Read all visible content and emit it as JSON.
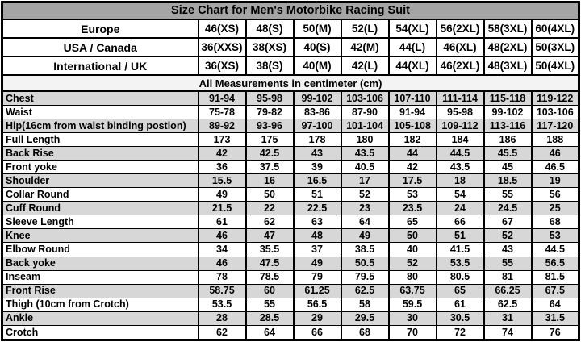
{
  "title": "Size Chart for Men's Motorbike Racing Suit",
  "note": "All Measurements in centimeter (cm)",
  "size_rows": [
    {
      "label": "Europe",
      "values": [
        "46(XS)",
        "48(S)",
        "50(M)",
        "52(L)",
        "54(XL)",
        "56(2XL)",
        "58(3XL)",
        "60(4XL)"
      ]
    },
    {
      "label": "USA / Canada",
      "values": [
        "36(XXS)",
        "38(XS)",
        "40(S)",
        "42(M)",
        "44(L)",
        "46(XL)",
        "48(2XL)",
        "50(3XL)"
      ]
    },
    {
      "label": "International / UK",
      "values": [
        "36(XS)",
        "38(S)",
        "40(M)",
        "42(L)",
        "44(XL)",
        "46(2XL)",
        "48(3XL)",
        "50(4XL)"
      ]
    }
  ],
  "measurement_rows": [
    {
      "label": "Chest",
      "values": [
        "91-94",
        "95-98",
        "99-102",
        "103-106",
        "107-110",
        "111-114",
        "115-118",
        "119-122"
      ]
    },
    {
      "label": "Waist",
      "values": [
        "75-78",
        "79-82",
        "83-86",
        "87-90",
        "91-94",
        "95-98",
        "99-102",
        "103-106"
      ]
    },
    {
      "label": "Hip(16cm from waist binding postion)",
      "values": [
        "89-92",
        "93-96",
        "97-100",
        "101-104",
        "105-108",
        "109-112",
        "113-116",
        "117-120"
      ]
    },
    {
      "label": "Full Length",
      "values": [
        "173",
        "175",
        "178",
        "180",
        "182",
        "184",
        "186",
        "188"
      ]
    },
    {
      "label": "Back Rise",
      "values": [
        "42",
        "42.5",
        "43",
        "43.5",
        "44",
        "44.5",
        "45.5",
        "46"
      ]
    },
    {
      "label": "Front yoke",
      "values": [
        "36",
        "37.5",
        "39",
        "40.5",
        "42",
        "43.5",
        "45",
        "46.5"
      ]
    },
    {
      "label": "Shoulder",
      "values": [
        "15.5",
        "16",
        "16.5",
        "17",
        "17.5",
        "18",
        "18.5",
        "19"
      ]
    },
    {
      "label": "Collar Round",
      "values": [
        "49",
        "50",
        "51",
        "52",
        "53",
        "54",
        "55",
        "56"
      ]
    },
    {
      "label": "Cuff Round",
      "values": [
        "21.5",
        "22",
        "22.5",
        "23",
        "23.5",
        "24",
        "24.5",
        "25"
      ]
    },
    {
      "label": "Sleeve Length",
      "values": [
        "61",
        "62",
        "63",
        "64",
        "65",
        "66",
        "67",
        "68"
      ]
    },
    {
      "label": "Knee",
      "values": [
        "46",
        "47",
        "48",
        "49",
        "50",
        "51",
        "52",
        "53"
      ]
    },
    {
      "label": "Elbow Round",
      "values": [
        "34",
        "35.5",
        "37",
        "38.5",
        "40",
        "41.5",
        "43",
        "44.5"
      ]
    },
    {
      "label": "Back yoke",
      "values": [
        "46",
        "47.5",
        "49",
        "50.5",
        "52",
        "53.5",
        "55",
        "56.5"
      ]
    },
    {
      "label": "Inseam",
      "values": [
        "78",
        "78.5",
        "79",
        "79.5",
        "80",
        "80.5",
        "81",
        "81.5"
      ]
    },
    {
      "label": "Front Rise",
      "values": [
        "58.75",
        "60",
        "61.25",
        "62.5",
        "63.75",
        "65",
        "66.25",
        "67.5"
      ]
    },
    {
      "label": "Thigh (10cm from Crotch)",
      "values": [
        "53.5",
        "55",
        "56.5",
        "58",
        "59.5",
        "61",
        "62.5",
        "64"
      ]
    },
    {
      "label": "Ankle",
      "values": [
        "28",
        "28.5",
        "29",
        "29.5",
        "30",
        "30.5",
        "31",
        "31.5"
      ]
    },
    {
      "label": "Crotch",
      "values": [
        "62",
        "64",
        "66",
        "68",
        "70",
        "72",
        "74",
        "76"
      ]
    }
  ],
  "colors": {
    "title_bg": "#a5a5a5",
    "stripe_bg": "#d7d7d7",
    "note_bg": "#f3f3f3",
    "row_bg": "#ffffff",
    "border": "#000000",
    "text": "#000000"
  }
}
